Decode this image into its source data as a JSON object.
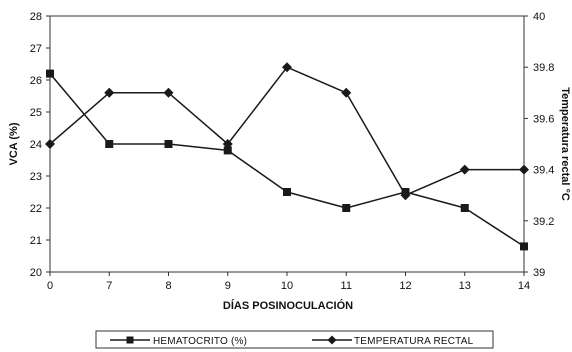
{
  "chart_data": {
    "type": "line",
    "title": "",
    "xlabel": "DÍAS POSINOCULACIÓN",
    "ylabel_left": "VCA (%)",
    "ylabel_right": "Temperatura rectal °C",
    "categories": [
      "0",
      "7",
      "8",
      "9",
      "10",
      "11",
      "12",
      "13",
      "14"
    ],
    "ylim_left": [
      20,
      28
    ],
    "yticks_left": [
      20,
      21,
      22,
      23,
      24,
      25,
      26,
      27,
      28
    ],
    "ylim_right": [
      39,
      40
    ],
    "yticks_right": [
      "39",
      "39.2",
      "39.4",
      "39.6",
      "39.8",
      "40"
    ],
    "yticks_right_values": [
      39,
      39.2,
      39.4,
      39.6,
      39.8,
      40
    ],
    "grid": false,
    "legend_position": "bottom",
    "series": [
      {
        "name": "HEMATOCRITO (%)",
        "axis": "left",
        "marker": "square",
        "color": "#1a1a1a",
        "values": [
          26.2,
          24.0,
          24.0,
          23.8,
          22.5,
          22.0,
          22.5,
          22.0,
          20.8
        ]
      },
      {
        "name": "TEMPERATURA RECTAL",
        "axis": "right",
        "marker": "diamond",
        "color": "#1a1a1a",
        "values": [
          39.5,
          39.7,
          39.7,
          39.5,
          39.8,
          39.7,
          39.3,
          39.4,
          39.4
        ]
      }
    ]
  }
}
